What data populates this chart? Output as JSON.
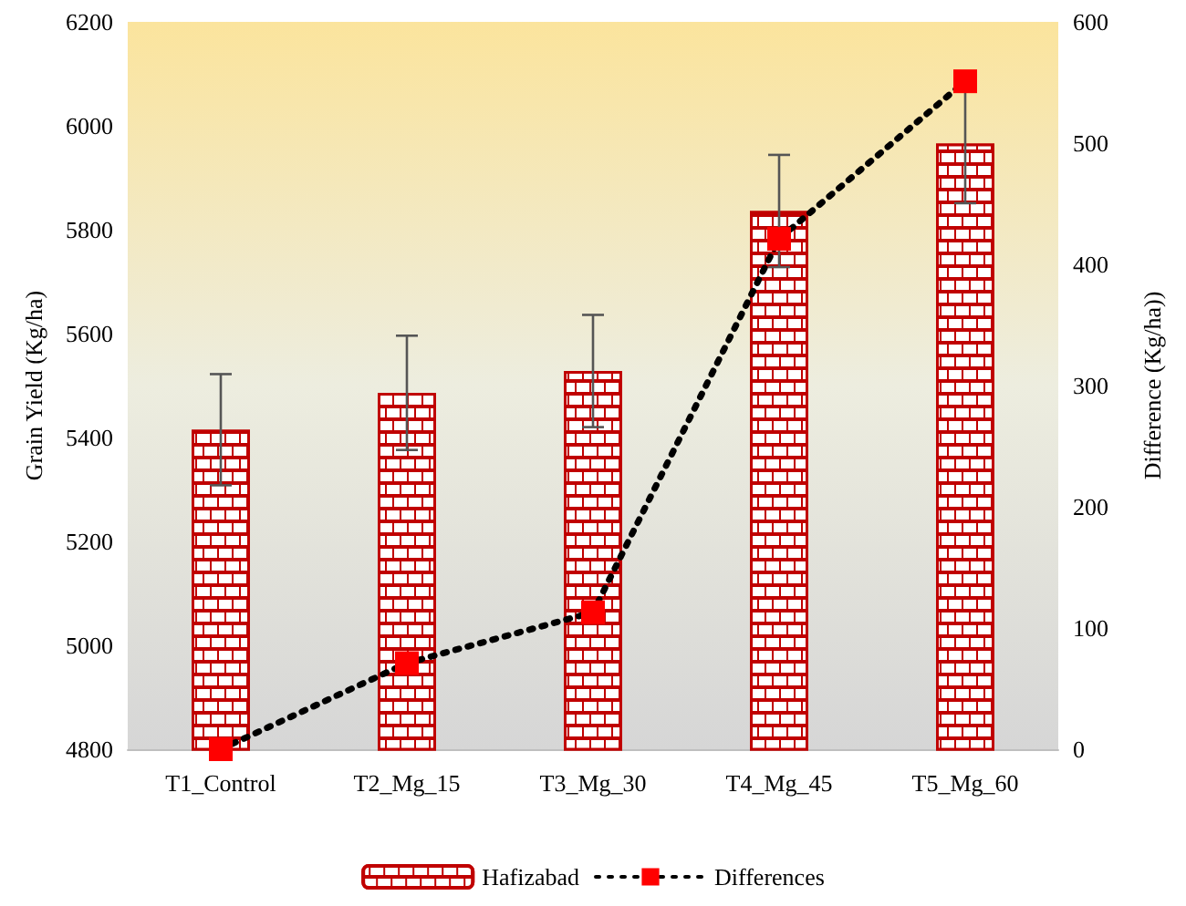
{
  "chart_data": {
    "type": "bar",
    "ylabel": "Grain Yield (Kg/ha)",
    "y2label": "Difference (Kg/ha))",
    "categories": [
      "T1_Control",
      "T2_Mg_15",
      "T3_Mg_30",
      "T4_Mg_45",
      "T5_Mg_60"
    ],
    "series": [
      {
        "name": "Hafizabad",
        "color": "#c00000",
        "values": [
          5415,
          5486,
          5528,
          5836,
          5966
        ],
        "errors": [
          107,
          110,
          108,
          108,
          115
        ]
      },
      {
        "name": "Differences",
        "type": "line",
        "axis": "y2",
        "color": "#000000",
        "colors": [
          "#ff0000",
          "#ff0000",
          "#ff0000",
          "#ff0000",
          "#ff0000"
        ],
        "values": [
          0,
          71,
          113,
          421,
          551
        ],
        "marker": "square",
        "line_style": "dotted"
      }
    ],
    "ylim": [
      4800,
      6200
    ],
    "yticks": [
      4800,
      5000,
      5200,
      5400,
      5600,
      5800,
      6000,
      6200
    ],
    "y2lim": [
      0,
      600
    ],
    "y2ticks": [
      0,
      100,
      200,
      300,
      400,
      500,
      600
    ],
    "grid": false,
    "legend": "bottom"
  }
}
